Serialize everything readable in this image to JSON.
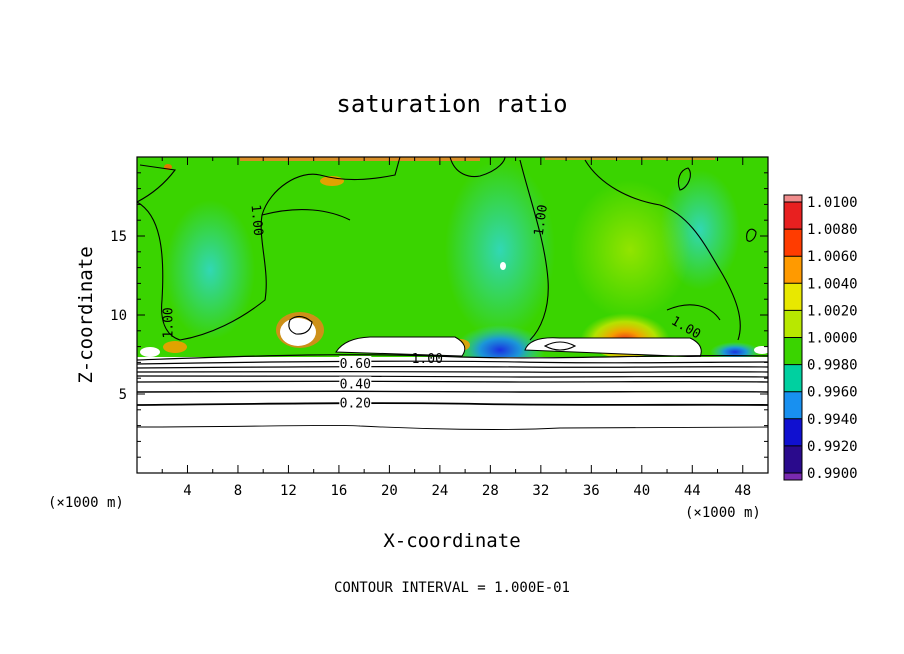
{
  "chart_data": {
    "type": "heatmap",
    "title": "saturation ratio",
    "xlabel": "X-coordinate",
    "ylabel": "Z-coordinate",
    "x_unit_left": "(×1000 m)",
    "x_unit_right": "(×1000 m)",
    "xlim": [
      0,
      50
    ],
    "ylim": [
      0,
      20
    ],
    "x_ticks": [
      4,
      8,
      12,
      16,
      20,
      24,
      28,
      32,
      36,
      40,
      44,
      48
    ],
    "y_ticks": [
      5,
      10,
      15
    ],
    "x_tick_labels": [
      "4",
      "8",
      "12",
      "16",
      "20",
      "24",
      "28",
      "32",
      "36",
      "40",
      "44",
      "48"
    ],
    "y_tick_labels": [
      "5",
      "10",
      "15"
    ],
    "colorbar": {
      "levels": [
        "1.0100",
        "1.0080",
        "1.0060",
        "1.0040",
        "1.0020",
        "1.0000",
        "0.9980",
        "0.9960",
        "0.9940",
        "0.9920",
        "0.9900"
      ],
      "colors": [
        "#f08c8c",
        "#e82020",
        "#ff3c00",
        "#ff9a00",
        "#e8e800",
        "#b8e800",
        "#3ad400",
        "#00d0a0",
        "#1890f0",
        "#1010d0",
        "#2a0a8c",
        "#7a2ab0"
      ],
      "min": 0.99,
      "max": 1.01
    },
    "contour_labels": [
      {
        "text": "1.00",
        "x": 9.5,
        "z": 16.0,
        "angle": 85
      },
      {
        "text": "1.00",
        "x": 32.0,
        "z": 16.0,
        "angle": -82
      },
      {
        "text": "1.00",
        "x": 2.5,
        "z": 9.5,
        "angle": -90
      },
      {
        "text": "1.00",
        "x": 43.5,
        "z": 9.2,
        "angle": 30
      },
      {
        "text": "1.00",
        "x": 23.0,
        "z": 7.2,
        "angle": 0
      },
      {
        "text": "0.60",
        "x": 17.3,
        "z": 6.9,
        "angle": 0
      },
      {
        "text": "0.40",
        "x": 17.3,
        "z": 5.6,
        "angle": 0
      },
      {
        "text": "0.20",
        "x": 17.3,
        "z": 4.4,
        "angle": 0
      }
    ],
    "footer": "CONTOUR INTERVAL = 1.000E-01",
    "grid": false,
    "legend": "colorbar-right"
  }
}
